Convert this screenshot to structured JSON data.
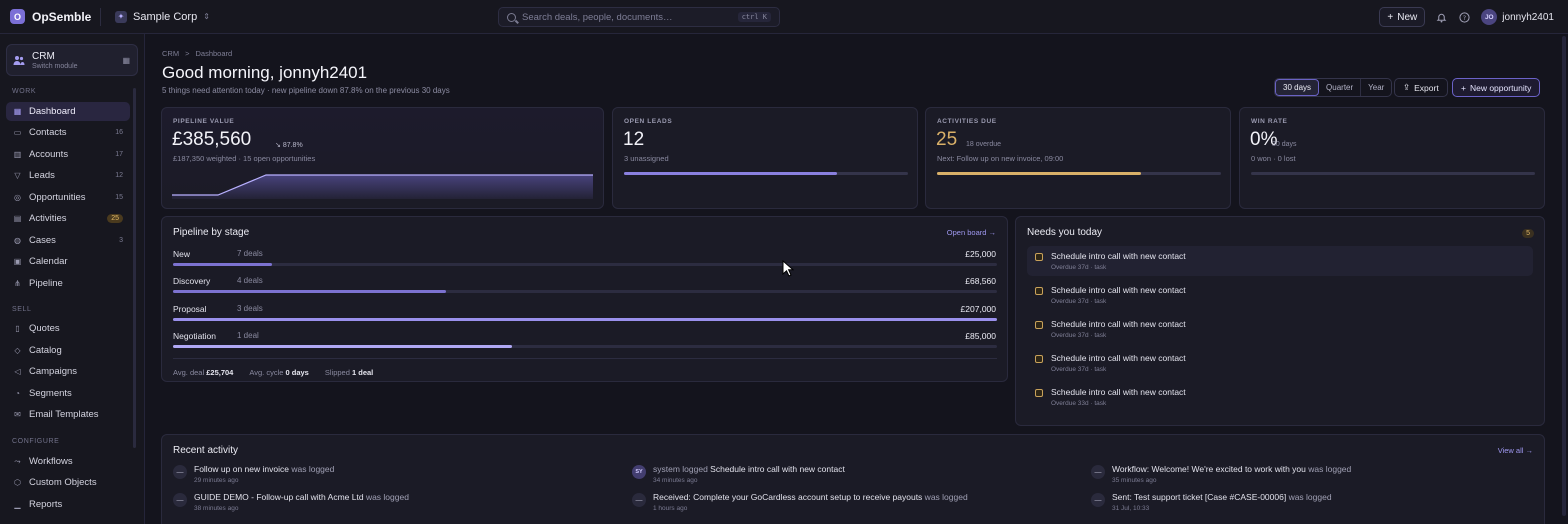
{
  "app": {
    "name": "OpSemble",
    "logo_letter": "O"
  },
  "workspace": {
    "name": "Sample Corp"
  },
  "search": {
    "placeholder": "Search deals, people, documents…",
    "shortcut": "ctrl K"
  },
  "topbar": {
    "new_label": "New",
    "user_initials": "JO",
    "user_name": "jonnyh2401"
  },
  "module": {
    "title": "CRM",
    "subtitle": "Switch module"
  },
  "sidebar": {
    "sections": [
      {
        "label": "WORK",
        "items": [
          {
            "label": "Dashboard",
            "count": "",
            "active": true
          },
          {
            "label": "Contacts",
            "count": "16"
          },
          {
            "label": "Accounts",
            "count": "17"
          },
          {
            "label": "Leads",
            "count": "12"
          },
          {
            "label": "Opportunities",
            "count": "15"
          },
          {
            "label": "Activities",
            "count": "25"
          },
          {
            "label": "Cases",
            "count": "3"
          },
          {
            "label": "Calendar",
            "count": ""
          },
          {
            "label": "Pipeline",
            "count": ""
          }
        ]
      },
      {
        "label": "SELL",
        "items": [
          {
            "label": "Quotes"
          },
          {
            "label": "Catalog"
          },
          {
            "label": "Campaigns"
          },
          {
            "label": "Segments"
          },
          {
            "label": "Email Templates"
          }
        ]
      },
      {
        "label": "CONFIGURE",
        "items": [
          {
            "label": "Workflows"
          },
          {
            "label": "Custom Objects"
          },
          {
            "label": "Reports"
          }
        ]
      }
    ]
  },
  "breadcrumb": {
    "root": "CRM",
    "sep": ">",
    "current": "Dashboard"
  },
  "header": {
    "greeting": "Good morning, jonnyh2401",
    "subtitle": "5 things need attention today · new pipeline down 87.8% on the previous 30 days",
    "ranges": [
      "30 days",
      "Quarter",
      "Year"
    ],
    "selected_range": "30 days",
    "export_label": "Export",
    "new_opportunity_label": "New opportunity"
  },
  "kpis": {
    "pipeline": {
      "label": "PIPELINE VALUE",
      "value": "£385,560",
      "trend": "87.8%",
      "sub": "£187,350 weighted · 15 open opportunities"
    },
    "leads": {
      "label": "OPEN LEADS",
      "value": "12",
      "sub": "3 unassigned",
      "assigned_fraction": 0.75
    },
    "activities": {
      "label": "ACTIVITIES DUE",
      "value": "25",
      "overdue": "18 overdue",
      "sub": "Next: Follow up on new invoice, 09:00",
      "overdue_fraction": 0.72,
      "accent": "#d9b068"
    },
    "winrate": {
      "label": "WIN RATE",
      "value": "0%",
      "period": "30 days",
      "sub": "0 won · 0 lost",
      "fraction": 0
    }
  },
  "pipeline_by_stage": {
    "title": "Pipeline by stage",
    "link": "Open board →",
    "stages": [
      {
        "name": "New",
        "deals": "7 deals",
        "amount": "£25,000",
        "fraction": 0.12
      },
      {
        "name": "Discovery",
        "deals": "4 deals",
        "amount": "£68,560",
        "fraction": 0.331
      },
      {
        "name": "Proposal",
        "deals": "3 deals",
        "amount": "£207,000",
        "fraction": 1.0
      },
      {
        "name": "Negotiation",
        "deals": "1 deal",
        "amount": "£85,000",
        "fraction": 0.411
      }
    ],
    "avg_deal_label": "Avg. deal",
    "avg_deal": "£25,704",
    "avg_cycle_label": "Avg. cycle",
    "avg_cycle": "0 days",
    "slipped_label": "Slipped",
    "slipped": "1 deal"
  },
  "needs_today": {
    "title": "Needs you today",
    "count": "5",
    "tasks": [
      {
        "title": "Schedule intro call with new contact",
        "meta": "Overdue 37d · task"
      },
      {
        "title": "Schedule intro call with new contact",
        "meta": "Overdue 37d · task"
      },
      {
        "title": "Schedule intro call with new contact",
        "meta": "Overdue 37d · task"
      },
      {
        "title": "Schedule intro call with new contact",
        "meta": "Overdue 37d · task"
      },
      {
        "title": "Schedule intro call with new contact",
        "meta": "Overdue 33d · task"
      }
    ]
  },
  "recent_activity": {
    "title": "Recent activity",
    "link": "View all →",
    "items": [
      {
        "icon": "—",
        "text": "Follow up on new invoice",
        "suffix": " was logged",
        "time": "29 minutes ago"
      },
      {
        "icon": "SY",
        "prefix": "system logged ",
        "text": "Schedule intro call with new contact",
        "suffix": "",
        "time": "34 minutes ago"
      },
      {
        "icon": "—",
        "text": "Workflow: Welcome! We're excited to work with you",
        "suffix": " was logged",
        "time": "35 minutes ago"
      },
      {
        "icon": "—",
        "text": "GUIDE DEMO - Follow-up call with Acme Ltd",
        "suffix": " was logged",
        "time": "38 minutes ago"
      },
      {
        "icon": "—",
        "text": "Received: Complete your GoCardless account setup to receive payouts",
        "suffix": " was logged",
        "time": "1 hours ago"
      },
      {
        "icon": "—",
        "text": "Sent: Test support ticket [Case #CASE-00006]",
        "suffix": " was logged",
        "time": "31 Jul, 10:33"
      }
    ]
  },
  "colors": {
    "accent": "#7c72d0",
    "warning": "#d9b068",
    "bg": "#14141d"
  }
}
